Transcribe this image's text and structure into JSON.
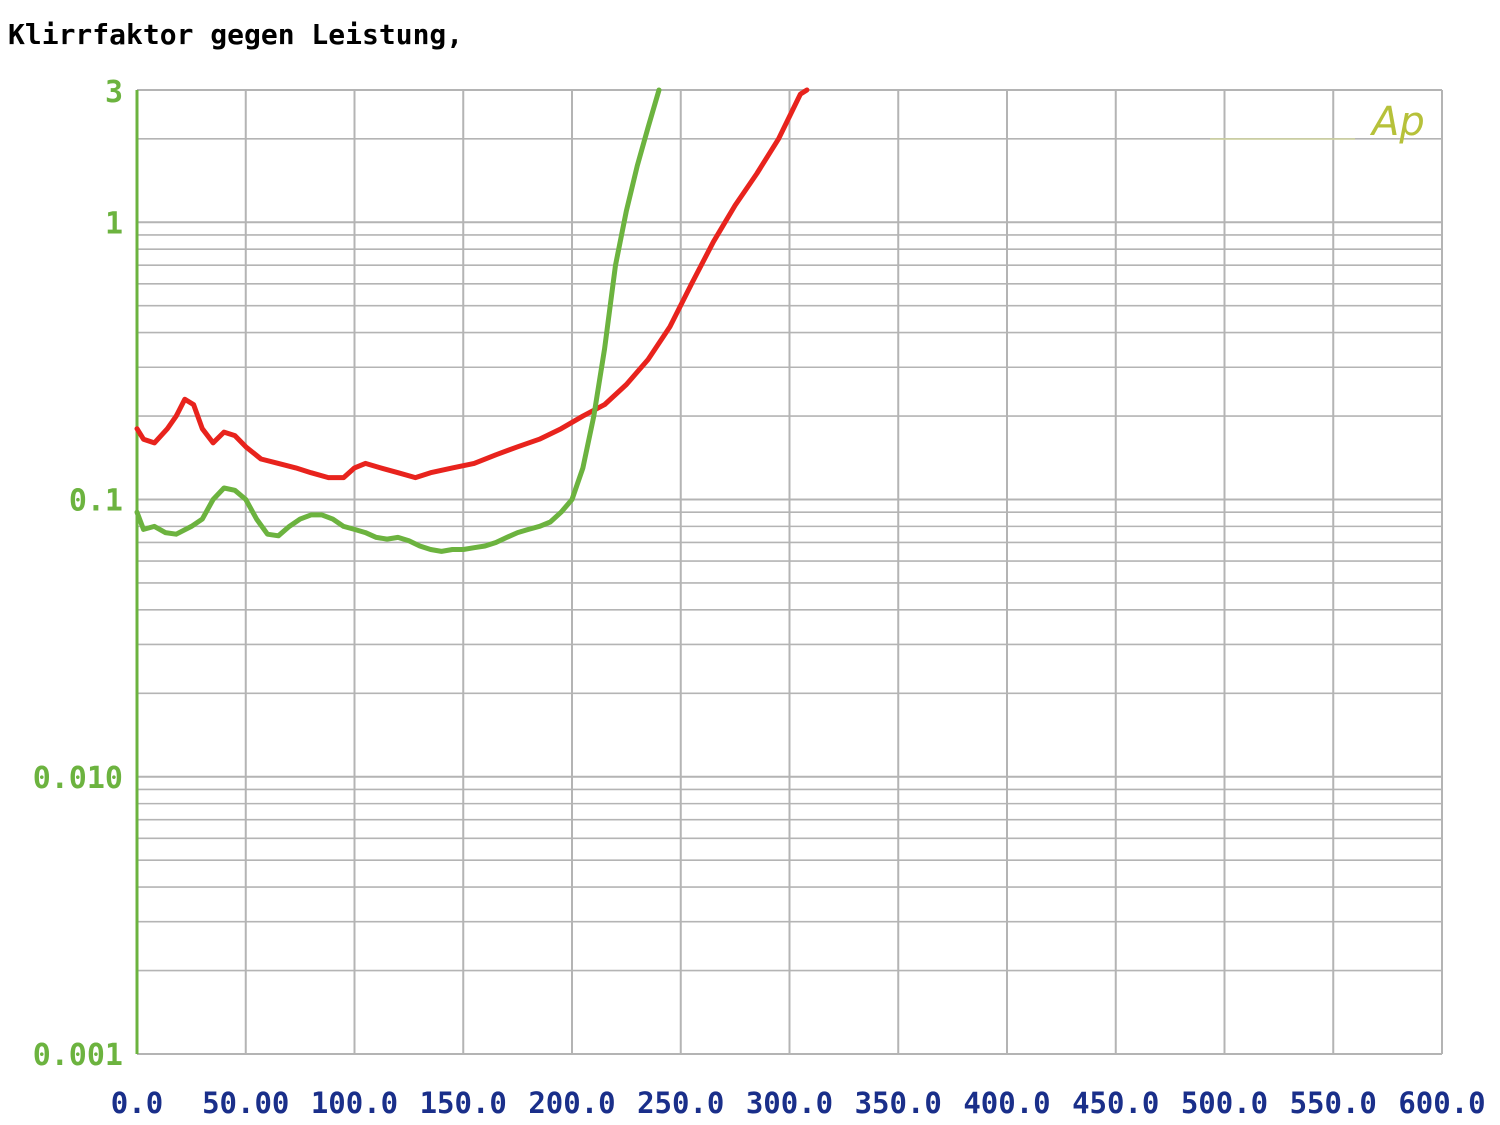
{
  "chart_data": {
    "type": "line",
    "title": "Klirrfaktor gegen Leistung,",
    "logo": "Ap",
    "x_scale": "linear",
    "y_scale": "log",
    "xlim": [
      0,
      600
    ],
    "ylim": [
      0.001,
      3
    ],
    "x_ticks": [
      "0.0",
      "50.00",
      "100.0",
      "150.0",
      "200.0",
      "250.0",
      "300.0",
      "350.0",
      "400.0",
      "450.0",
      "500.0",
      "550.0",
      "600.0"
    ],
    "x_tick_values": [
      0,
      50,
      100,
      150,
      200,
      250,
      300,
      350,
      400,
      450,
      500,
      550,
      600
    ],
    "y_ticks": [
      "3",
      "1",
      "0.1",
      "0.010",
      "0.001"
    ],
    "y_tick_values": [
      3,
      1,
      0.1,
      0.01,
      0.001
    ],
    "grid": true,
    "colors": {
      "grid": "#b4b4b4",
      "ylabel": "#6cb33f",
      "xlabel": "#1a2f8a",
      "logo": "#b6c13a",
      "series_red": "#e8231d",
      "series_green": "#6cb33f"
    },
    "series": [
      {
        "color": "#e8231d",
        "points": [
          [
            0,
            0.18
          ],
          [
            3,
            0.165
          ],
          [
            8,
            0.16
          ],
          [
            14,
            0.18
          ],
          [
            18,
            0.2
          ],
          [
            22,
            0.23
          ],
          [
            26,
            0.22
          ],
          [
            30,
            0.18
          ],
          [
            35,
            0.16
          ],
          [
            40,
            0.175
          ],
          [
            45,
            0.17
          ],
          [
            50,
            0.155
          ],
          [
            57,
            0.14
          ],
          [
            65,
            0.135
          ],
          [
            73,
            0.13
          ],
          [
            80,
            0.125
          ],
          [
            88,
            0.12
          ],
          [
            95,
            0.12
          ],
          [
            100,
            0.13
          ],
          [
            105,
            0.135
          ],
          [
            112,
            0.13
          ],
          [
            120,
            0.125
          ],
          [
            128,
            0.12
          ],
          [
            135,
            0.125
          ],
          [
            145,
            0.13
          ],
          [
            155,
            0.135
          ],
          [
            165,
            0.145
          ],
          [
            175,
            0.155
          ],
          [
            185,
            0.165
          ],
          [
            195,
            0.18
          ],
          [
            205,
            0.2
          ],
          [
            215,
            0.22
          ],
          [
            225,
            0.26
          ],
          [
            235,
            0.32
          ],
          [
            245,
            0.42
          ],
          [
            255,
            0.6
          ],
          [
            265,
            0.85
          ],
          [
            275,
            1.15
          ],
          [
            285,
            1.5
          ],
          [
            295,
            2.0
          ],
          [
            305,
            2.9
          ],
          [
            308,
            3.0
          ]
        ]
      },
      {
        "color": "#6cb33f",
        "points": [
          [
            0,
            0.09
          ],
          [
            3,
            0.078
          ],
          [
            8,
            0.08
          ],
          [
            13,
            0.076
          ],
          [
            18,
            0.075
          ],
          [
            25,
            0.08
          ],
          [
            30,
            0.085
          ],
          [
            35,
            0.1
          ],
          [
            40,
            0.11
          ],
          [
            45,
            0.108
          ],
          [
            50,
            0.1
          ],
          [
            55,
            0.085
          ],
          [
            60,
            0.075
          ],
          [
            65,
            0.074
          ],
          [
            70,
            0.08
          ],
          [
            75,
            0.085
          ],
          [
            80,
            0.088
          ],
          [
            85,
            0.088
          ],
          [
            90,
            0.085
          ],
          [
            95,
            0.08
          ],
          [
            100,
            0.078
          ],
          [
            105,
            0.076
          ],
          [
            110,
            0.073
          ],
          [
            115,
            0.072
          ],
          [
            120,
            0.073
          ],
          [
            125,
            0.071
          ],
          [
            130,
            0.068
          ],
          [
            135,
            0.066
          ],
          [
            140,
            0.065
          ],
          [
            145,
            0.066
          ],
          [
            150,
            0.066
          ],
          [
            155,
            0.067
          ],
          [
            160,
            0.068
          ],
          [
            165,
            0.07
          ],
          [
            170,
            0.073
          ],
          [
            175,
            0.076
          ],
          [
            180,
            0.078
          ],
          [
            185,
            0.08
          ],
          [
            190,
            0.083
          ],
          [
            195,
            0.09
          ],
          [
            200,
            0.1
          ],
          [
            205,
            0.13
          ],
          [
            210,
            0.2
          ],
          [
            215,
            0.35
          ],
          [
            220,
            0.7
          ],
          [
            225,
            1.1
          ],
          [
            230,
            1.6
          ],
          [
            235,
            2.2
          ],
          [
            240,
            3.0
          ]
        ]
      }
    ]
  }
}
